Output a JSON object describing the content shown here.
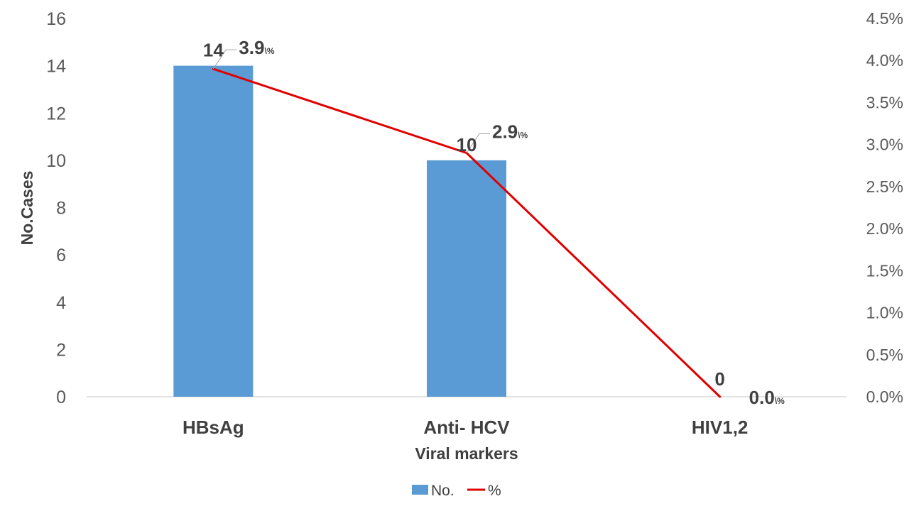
{
  "chart_data": {
    "type": "bar",
    "categories": [
      "HBsAg",
      "Anti- HCV",
      "HIV1,2"
    ],
    "series": [
      {
        "name": "No.",
        "type": "bar",
        "axis": "left",
        "color": "#5B9BD5",
        "values": [
          14,
          10,
          0
        ],
        "labels": [
          "14",
          "10",
          "0"
        ]
      },
      {
        "name": "%",
        "type": "line",
        "axis": "right",
        "color": "#E00000",
        "values": [
          3.9,
          2.9,
          0.0
        ],
        "labels": [
          "3.9",
          "2.9",
          "0.0"
        ],
        "label_suffix": "\\%"
      }
    ],
    "xlabel": "Viral markers",
    "ylabel": "No.Cases",
    "ylim": [
      0,
      16
    ],
    "yticks": [
      "0",
      "2",
      "4",
      "6",
      "8",
      "10",
      "12",
      "14",
      "16"
    ],
    "y2lim": [
      0,
      4.5
    ],
    "y2ticks": [
      "0.0%",
      "0.5%",
      "1.0%",
      "1.5%",
      "2.0%",
      "2.5%",
      "3.0%",
      "3.5%",
      "4.0%",
      "4.5%"
    ],
    "legend_position": "bottom",
    "grid": false
  }
}
